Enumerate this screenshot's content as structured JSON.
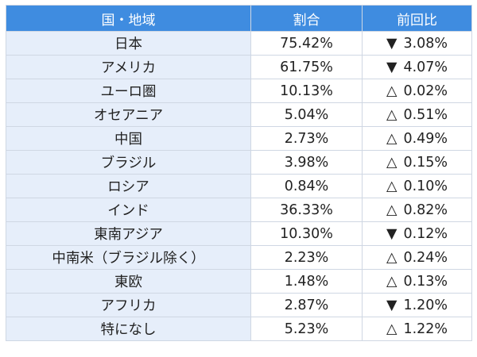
{
  "table": {
    "headers": {
      "region": "国・地域",
      "share": "割合",
      "change": "前回比"
    },
    "rows": [
      {
        "region": "日本",
        "share": "75.42%",
        "mark": "▼",
        "change": "3.08%"
      },
      {
        "region": "アメリカ",
        "share": "61.75%",
        "mark": "▼",
        "change": "4.07%"
      },
      {
        "region": "ユーロ圏",
        "share": "10.13%",
        "mark": "△",
        "change": "0.02%"
      },
      {
        "region": "オセアニア",
        "share": "5.04%",
        "mark": "△",
        "change": "0.51%"
      },
      {
        "region": "中国",
        "share": "2.73%",
        "mark": "△",
        "change": "0.49%"
      },
      {
        "region": "ブラジル",
        "share": "3.98%",
        "mark": "△",
        "change": "0.15%"
      },
      {
        "region": "ロシア",
        "share": "0.84%",
        "mark": "△",
        "change": "0.10%"
      },
      {
        "region": "インド",
        "share": "36.33%",
        "mark": "△",
        "change": "0.82%"
      },
      {
        "region": "東南アジア",
        "share": "10.30%",
        "mark": "▼",
        "change": "0.12%"
      },
      {
        "region": "中南米（ブラジル除く）",
        "share": "2.23%",
        "mark": "△",
        "change": "0.24%"
      },
      {
        "region": "東欧",
        "share": "1.48%",
        "mark": "△",
        "change": "0.13%"
      },
      {
        "region": "アフリカ",
        "share": "2.87%",
        "mark": "▼",
        "change": "1.20%"
      },
      {
        "region": "特になし",
        "share": "5.23%",
        "mark": "△",
        "change": "1.22%"
      }
    ]
  }
}
